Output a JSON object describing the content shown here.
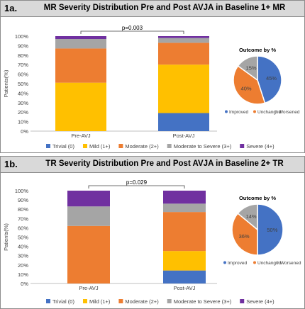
{
  "panels": [
    {
      "label": "1a.",
      "title": "MR Severity Distribution Pre and Post AVJA in Baseline 1+ MR",
      "ylabel": "Patients(%)",
      "pvalue": "p=0.003"
    },
    {
      "label": "1b.",
      "title": "TR Severity Distribution Pre and Post AVJA in Baseline 2+ TR",
      "ylabel": "Patients(%)",
      "pvalue": "p=0.029"
    }
  ],
  "colors": {
    "Trivial (0)": "#4472c4",
    "Mild (1+)": "#ffc000",
    "Moderate (2+)": "#ed7d31",
    "Moderate to Severe (3+)": "#a5a5a5",
    "Severe (4+)": "#7030a0",
    "Improved": "#4472c4",
    "Unchanged": "#ed7d31",
    "Worsened": "#a5a5a5"
  },
  "chart_data": [
    {
      "type": "bar",
      "stacked": true,
      "categories": [
        "Pre-AVJ",
        "Post-AVJ"
      ],
      "ylim": [
        0,
        100
      ],
      "yticks": [
        "0%",
        "10%",
        "20%",
        "30%",
        "40%",
        "50%",
        "60%",
        "70%",
        "80%",
        "90%",
        "100%"
      ],
      "ylabel": "Patients(%)",
      "legend": "bottom",
      "series": [
        {
          "name": "Trivial (0)",
          "values": [
            0,
            19
          ]
        },
        {
          "name": "Mild (1+)",
          "values": [
            51,
            51
          ]
        },
        {
          "name": "Moderate (2+)",
          "values": [
            36,
            23
          ]
        },
        {
          "name": "Moderate to Severe (3+)",
          "values": [
            10,
            5
          ]
        },
        {
          "name": "Severe (4+)",
          "values": [
            3,
            2
          ]
        }
      ]
    },
    {
      "type": "pie",
      "title": "Outcome by %",
      "legend": "bottom",
      "labels": [
        "Improved",
        "Unchanged",
        "Worsened"
      ],
      "values": [
        45,
        40,
        15
      ],
      "value_labels": [
        "45%",
        "40%",
        "15%"
      ]
    },
    {
      "type": "bar",
      "stacked": true,
      "categories": [
        "Pre-AVJ",
        "Post-AVJ"
      ],
      "ylim": [
        0,
        100
      ],
      "yticks": [
        "0%",
        "10%",
        "20%",
        "30%",
        "40%",
        "50%",
        "60%",
        "70%",
        "80%",
        "90%",
        "100%"
      ],
      "ylabel": "Patients(%)",
      "legend": "bottom",
      "series": [
        {
          "name": "Trivial (0)",
          "values": [
            0,
            14
          ]
        },
        {
          "name": "Mild (1+)",
          "values": [
            0,
            21
          ]
        },
        {
          "name": "Moderate (2+)",
          "values": [
            62,
            42
          ]
        },
        {
          "name": "Moderate to Severe (3+)",
          "values": [
            21,
            9
          ]
        },
        {
          "name": "Severe (4+)",
          "values": [
            17,
            14
          ]
        }
      ]
    },
    {
      "type": "pie",
      "title": "Outcome by %",
      "legend": "bottom",
      "labels": [
        "Improved",
        "Unchanged",
        "Worsened"
      ],
      "values": [
        50,
        36,
        14
      ],
      "value_labels": [
        "50%",
        "36%",
        "14%"
      ]
    }
  ]
}
